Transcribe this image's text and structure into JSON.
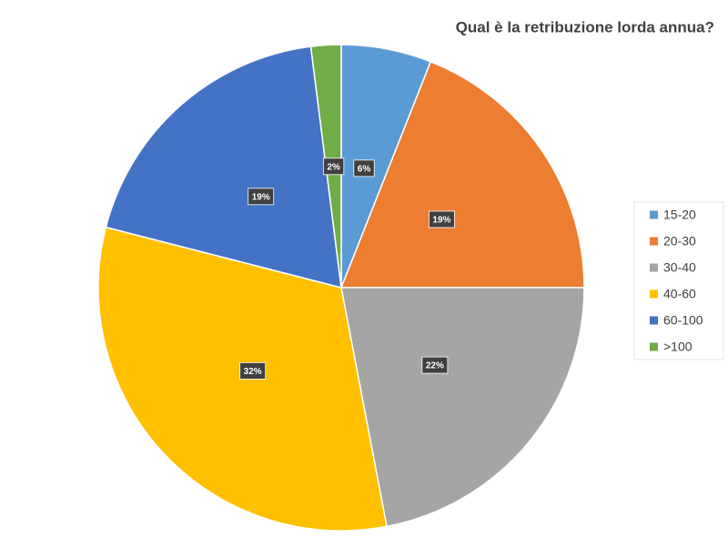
{
  "chart_data": {
    "type": "pie",
    "title": "Qual è la retribuzione lorda annua?",
    "categories": [
      "15-20",
      "20-30",
      "30-40",
      "40-60",
      "60-100",
      ">100"
    ],
    "values": [
      6,
      19,
      22,
      32,
      19,
      2
    ],
    "value_labels": [
      "6%",
      "19%",
      "22%",
      "32%",
      "19%",
      "2%"
    ],
    "colors": [
      "#5b9bd5",
      "#ed7d31",
      "#a5a5a5",
      "#ffc000",
      "#4472c4",
      "#70ad47"
    ],
    "legend": "right"
  }
}
